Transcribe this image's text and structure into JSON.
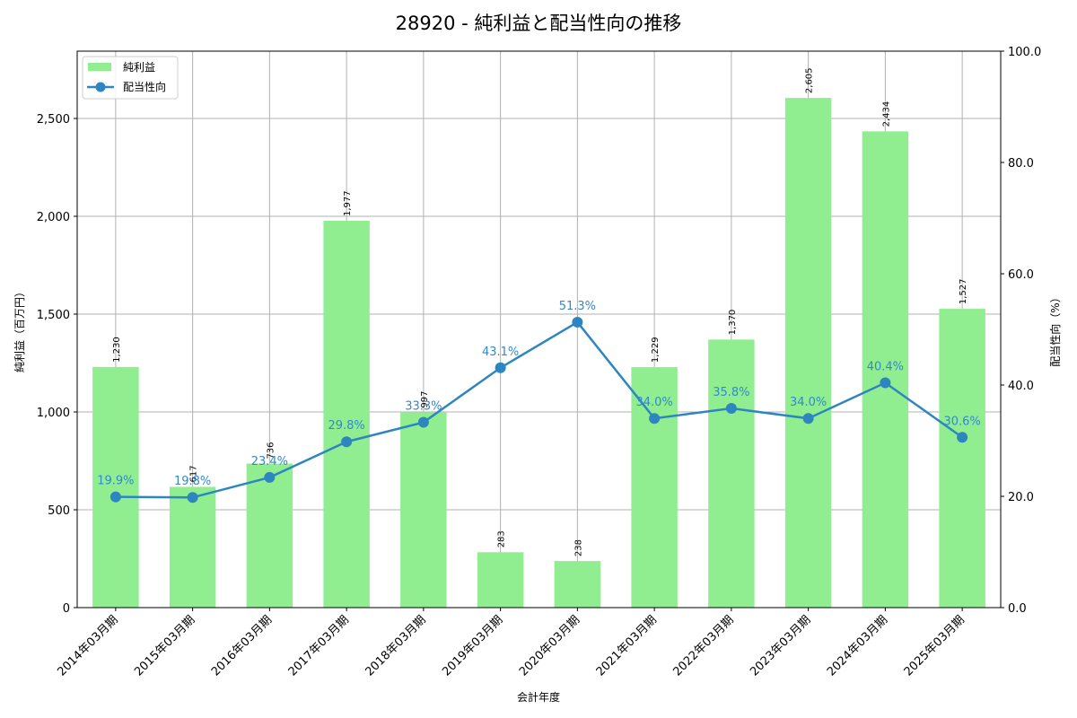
{
  "chart_data": {
    "type": "bar+line",
    "title": "28920 - 純利益と配当性向の推移",
    "xlabel": "会計年度",
    "ylabel": "純利益（百万円）",
    "y2label": "配当性向（%）",
    "ylim": [
      0,
      2844
    ],
    "y2lim": [
      0,
      100
    ],
    "yticks": [
      0,
      500,
      1000,
      1500,
      2000,
      2500
    ],
    "ytick_labels": [
      "0",
      "500",
      "1,000",
      "1,500",
      "2,000",
      "2,500"
    ],
    "y2ticks": [
      0,
      20,
      40,
      60,
      80,
      100
    ],
    "y2tick_labels": [
      "0.0",
      "20.0",
      "40.0",
      "60.0",
      "80.0",
      "100.0"
    ],
    "grid": true,
    "legend_position": "upper left",
    "categories": [
      "2014年03月期",
      "2015年03月期",
      "2016年03月期",
      "2017年03月期",
      "2018年03月期",
      "2019年03月期",
      "2020年03月期",
      "2021年03月期",
      "2022年03月期",
      "2023年03月期",
      "2024年03月期",
      "2025年03月期"
    ],
    "series": [
      {
        "name": "純利益",
        "type": "bar",
        "axis": "left",
        "color": "#90ee90",
        "values": [
          1230,
          617,
          736,
          1977,
          997,
          283,
          238,
          1229,
          1370,
          2605,
          2434,
          1527
        ],
        "labels": [
          "1,230",
          "617",
          "736",
          "1,977",
          "997",
          "283",
          "238",
          "1,229",
          "1,370",
          "2,605",
          "2,434",
          "1,527"
        ]
      },
      {
        "name": "配当性向",
        "type": "line",
        "axis": "right",
        "color": "#2e86c1",
        "values": [
          19.9,
          19.8,
          23.4,
          29.8,
          33.3,
          43.1,
          51.3,
          34.0,
          35.8,
          34.0,
          40.4,
          30.6
        ],
        "labels": [
          "19.9%",
          "19.8%",
          "23.4%",
          "29.8%",
          "33.3%",
          "43.1%",
          "51.3%",
          "34.0%",
          "35.8%",
          "34.0%",
          "40.4%",
          "30.6%"
        ]
      }
    ]
  },
  "legend": {
    "items": [
      {
        "label": "純利益",
        "color": "#90ee90"
      },
      {
        "label": "配当性向",
        "color": "#2e86c1"
      }
    ]
  }
}
